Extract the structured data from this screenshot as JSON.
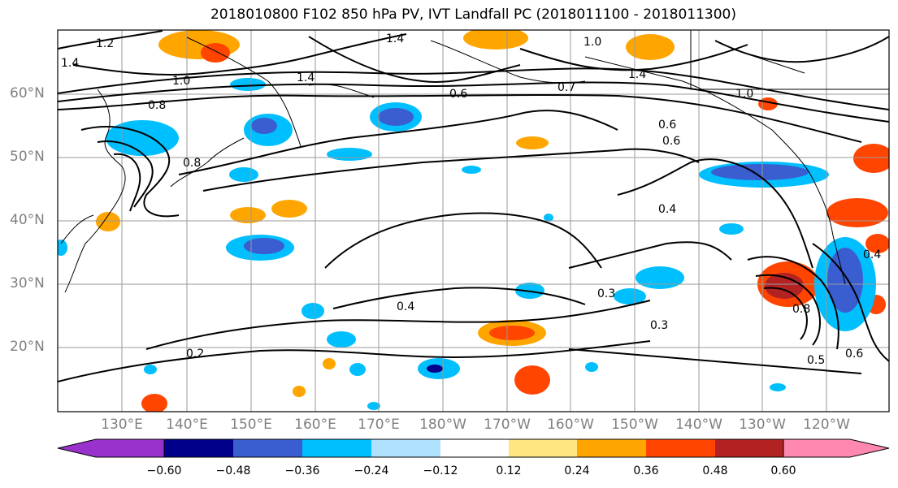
{
  "title": "2018010800 F102 850 hPa PV, IVT Landfall PC (2018011100 - 2018011300)",
  "lat_labels": [
    "60°N",
    "50°N",
    "40°N",
    "30°N",
    "20°N"
  ],
  "lon_labels": [
    "130°E",
    "140°E",
    "150°E",
    "160°E",
    "170°E",
    "180°W",
    "170°W",
    "160°W",
    "150°W",
    "140°W",
    "130°W",
    "120°W"
  ],
  "contour_labels": [
    "1.2",
    "1.4",
    "1.0",
    "1.4",
    "1.4",
    "0.8",
    "1.0",
    "0.6",
    "0.7",
    "1.4",
    "0.6",
    "0.6",
    "0.4",
    "0.3",
    "0.4",
    "0.3",
    "0.8",
    "0.4",
    "0.2",
    "0.5",
    "0.6",
    "1.0",
    "0.8"
  ],
  "colorbar": {
    "colors": [
      "#9932cc",
      "#00008b",
      "#3a5ed0",
      "#00bfff",
      "#b0e2ff",
      "#ffffff",
      "#ffe680",
      "#ffa500",
      "#ff4500",
      "#b22222",
      "#ff88b0"
    ],
    "tick_labels": [
      "−0.60",
      "−0.48",
      "−0.36",
      "−0.24",
      "−0.12",
      "0.12",
      "0.24",
      "0.36",
      "0.48",
      "0.60"
    ]
  }
}
